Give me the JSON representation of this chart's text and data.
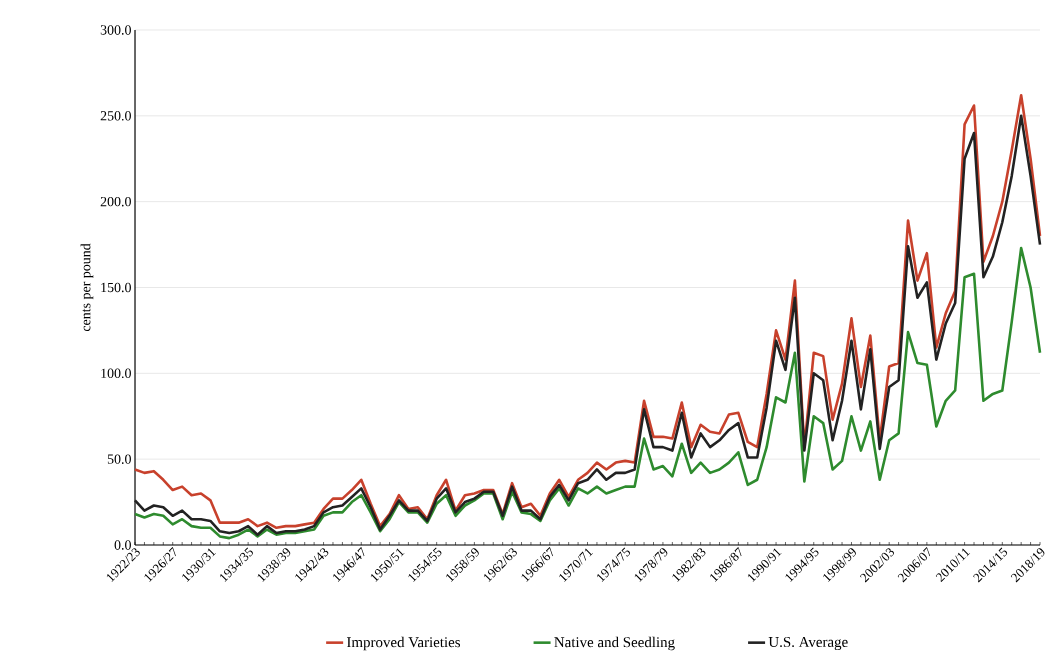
{
  "chart_data": {
    "type": "line",
    "ylabel": "cents per pound",
    "categories": [
      "1922/23",
      null,
      null,
      null,
      "1926/27",
      null,
      null,
      null,
      "1930/31",
      null,
      null,
      null,
      "1934/35",
      null,
      null,
      null,
      "1938/39",
      null,
      null,
      null,
      "1942/43",
      null,
      null,
      null,
      "1946/47",
      null,
      null,
      null,
      "1950/51",
      null,
      null,
      null,
      "1954/55",
      null,
      null,
      null,
      "1958/59",
      null,
      null,
      null,
      "1962/63",
      null,
      null,
      null,
      "1966/67",
      null,
      null,
      null,
      "1970/71",
      null,
      null,
      null,
      "1974/75",
      null,
      null,
      null,
      "1978/79",
      null,
      null,
      null,
      "1982/83",
      null,
      null,
      null,
      "1986/87",
      null,
      null,
      null,
      "1990/91",
      null,
      null,
      null,
      "1994/95",
      null,
      null,
      null,
      "1998/99",
      null,
      null,
      null,
      "2002/03",
      null,
      null,
      null,
      "2006/07",
      null,
      null,
      null,
      "2010/11",
      null,
      null,
      null,
      "2014/15",
      null,
      null,
      null,
      "2018/19"
    ],
    "series": [
      {
        "name": "Improved Varieties",
        "color": "#c8412c",
        "values": [
          44,
          42,
          43,
          38,
          32,
          34,
          29,
          30,
          26,
          13,
          13,
          13,
          15,
          11,
          13,
          10,
          11,
          11,
          12,
          13,
          21,
          27,
          27,
          32,
          38,
          24,
          11,
          18,
          29,
          21,
          22,
          15,
          29,
          38,
          20,
          29,
          30,
          32,
          32,
          18,
          36,
          22,
          24,
          17,
          30,
          38,
          28,
          38,
          42,
          48,
          44,
          48,
          49,
          48,
          84,
          63,
          63,
          62,
          83,
          57,
          70,
          66,
          65,
          76,
          77,
          60,
          57,
          88,
          125,
          108,
          154,
          57,
          112,
          110,
          73,
          94,
          132,
          92,
          122,
          61,
          104,
          106,
          189,
          154,
          170,
          115,
          135,
          148,
          245,
          256,
          165,
          180,
          200,
          230,
          262,
          225,
          180
        ]
      },
      {
        "name": "Native and Seedling",
        "color": "#2e8b2e",
        "values": [
          18,
          16,
          18,
          17,
          12,
          15,
          11,
          10,
          10,
          5,
          4,
          6,
          9,
          5,
          9,
          6,
          7,
          7,
          8,
          9,
          17,
          19,
          19,
          25,
          29,
          19,
          8,
          15,
          25,
          19,
          19,
          13,
          24,
          29,
          17,
          23,
          26,
          30,
          30,
          15,
          31,
          19,
          18,
          14,
          26,
          33,
          23,
          33,
          30,
          34,
          30,
          32,
          34,
          34,
          62,
          44,
          46,
          40,
          59,
          42,
          48,
          42,
          44,
          48,
          54,
          35,
          38,
          57,
          86,
          83,
          112,
          37,
          75,
          71,
          44,
          49,
          75,
          55,
          72,
          38,
          61,
          65,
          124,
          106,
          105,
          69,
          84,
          90,
          156,
          158,
          84,
          88,
          90,
          130,
          173,
          150,
          112
        ]
      },
      {
        "name": "U.S. Average",
        "color": "#222222",
        "values": [
          26,
          20,
          23,
          22,
          17,
          20,
          15,
          15,
          14,
          8,
          7,
          8,
          11,
          6,
          11,
          7,
          8,
          8,
          9,
          11,
          19,
          22,
          23,
          28,
          33,
          22,
          9,
          17,
          26,
          20,
          20,
          14,
          27,
          33,
          19,
          25,
          27,
          31,
          31,
          17,
          34,
          20,
          20,
          15,
          28,
          35,
          26,
          36,
          38,
          44,
          38,
          42,
          42,
          44,
          79,
          57,
          57,
          55,
          77,
          51,
          65,
          57,
          61,
          67,
          71,
          51,
          51,
          80,
          119,
          102,
          144,
          55,
          100,
          96,
          61,
          84,
          119,
          79,
          114,
          56,
          92,
          96,
          174,
          144,
          153,
          108,
          129,
          141,
          225,
          240,
          156,
          168,
          188,
          215,
          250,
          215,
          175
        ]
      }
    ],
    "ylim": [
      0,
      300
    ],
    "yticks": [
      {
        "value": 0,
        "label": "0.0"
      },
      {
        "value": 50,
        "label": "50.0"
      },
      {
        "value": 100,
        "label": "100.0"
      },
      {
        "value": 150,
        "label": "150.0"
      },
      {
        "value": 200,
        "label": "200.0"
      },
      {
        "value": 250,
        "label": "250.0"
      },
      {
        "value": 300,
        "label": "300.0"
      }
    ],
    "grid": "y",
    "legend": "bottom"
  }
}
